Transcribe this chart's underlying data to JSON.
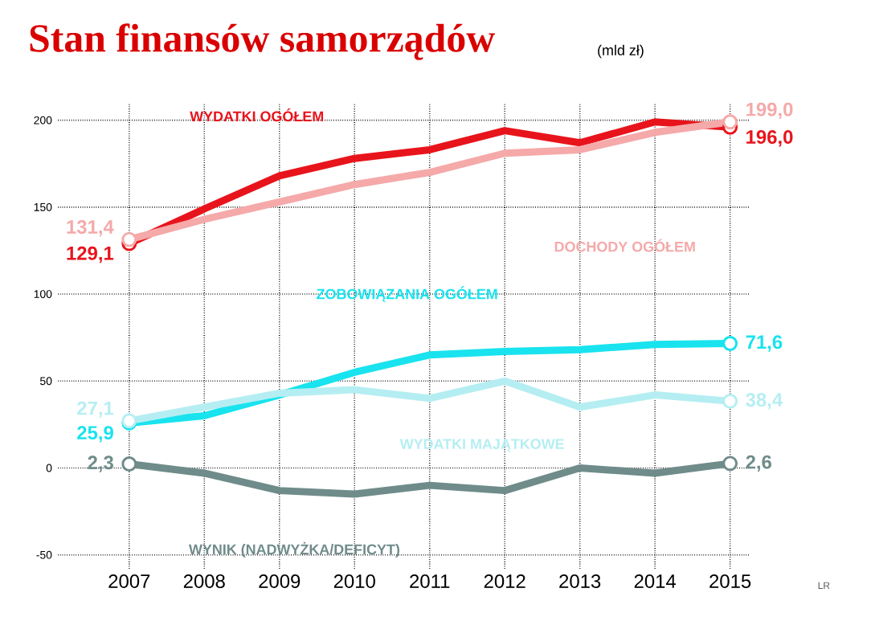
{
  "chart_data": {
    "type": "line",
    "title": "Stan finansów samorządów",
    "subtitle": "(mld zł)",
    "categories": [
      "2007",
      "2008",
      "2009",
      "2010",
      "2011",
      "2012",
      "2013",
      "2014",
      "2015"
    ],
    "series": [
      {
        "name": "WYDATKI OGÓŁEM",
        "color": "#e8141c",
        "values": [
          129.1,
          149,
          168,
          178,
          183,
          194,
          187,
          199,
          196.0
        ],
        "value_labels": [
          "129,1",
          null,
          null,
          null,
          null,
          null,
          null,
          null,
          "196,0"
        ]
      },
      {
        "name": "DOCHODY OGÓŁEM",
        "color": "#f5a9a9",
        "values": [
          131.4,
          143,
          153,
          163,
          170,
          181,
          183,
          193,
          199.0
        ],
        "value_labels": [
          "131,4",
          null,
          null,
          null,
          null,
          null,
          null,
          null,
          "199,0"
        ]
      },
      {
        "name": "ZOBOWIĄZANIA OGÓŁEM",
        "color": "#19e3ee",
        "values": [
          25.9,
          30,
          42,
          55,
          65,
          67,
          68,
          71,
          71.6
        ],
        "value_labels": [
          "25,9",
          null,
          null,
          null,
          null,
          null,
          null,
          null,
          "71,6"
        ]
      },
      {
        "name": "WYDATKI MAJĄTKOWE",
        "color": "#b5eef2",
        "values": [
          27.1,
          35,
          43,
          45,
          40,
          50,
          35,
          42,
          38.4
        ],
        "value_labels": [
          "27,1",
          null,
          null,
          null,
          null,
          null,
          null,
          null,
          "38,4"
        ]
      },
      {
        "name": "WYNIK (NADWYŻKA/DEFICYT)",
        "color": "#6f8c8a",
        "values": [
          2.3,
          -3,
          -13,
          -15,
          -10,
          -13,
          0,
          -3,
          2.6
        ],
        "value_labels": [
          "2,3",
          null,
          null,
          null,
          null,
          null,
          null,
          null,
          "2,6"
        ]
      }
    ],
    "ylim": [
      -58,
      210
    ],
    "yticks": [
      -50,
      0,
      50,
      100,
      150,
      200
    ],
    "grid": true,
    "line_style": "solid",
    "annotations": [
      "LR"
    ]
  }
}
